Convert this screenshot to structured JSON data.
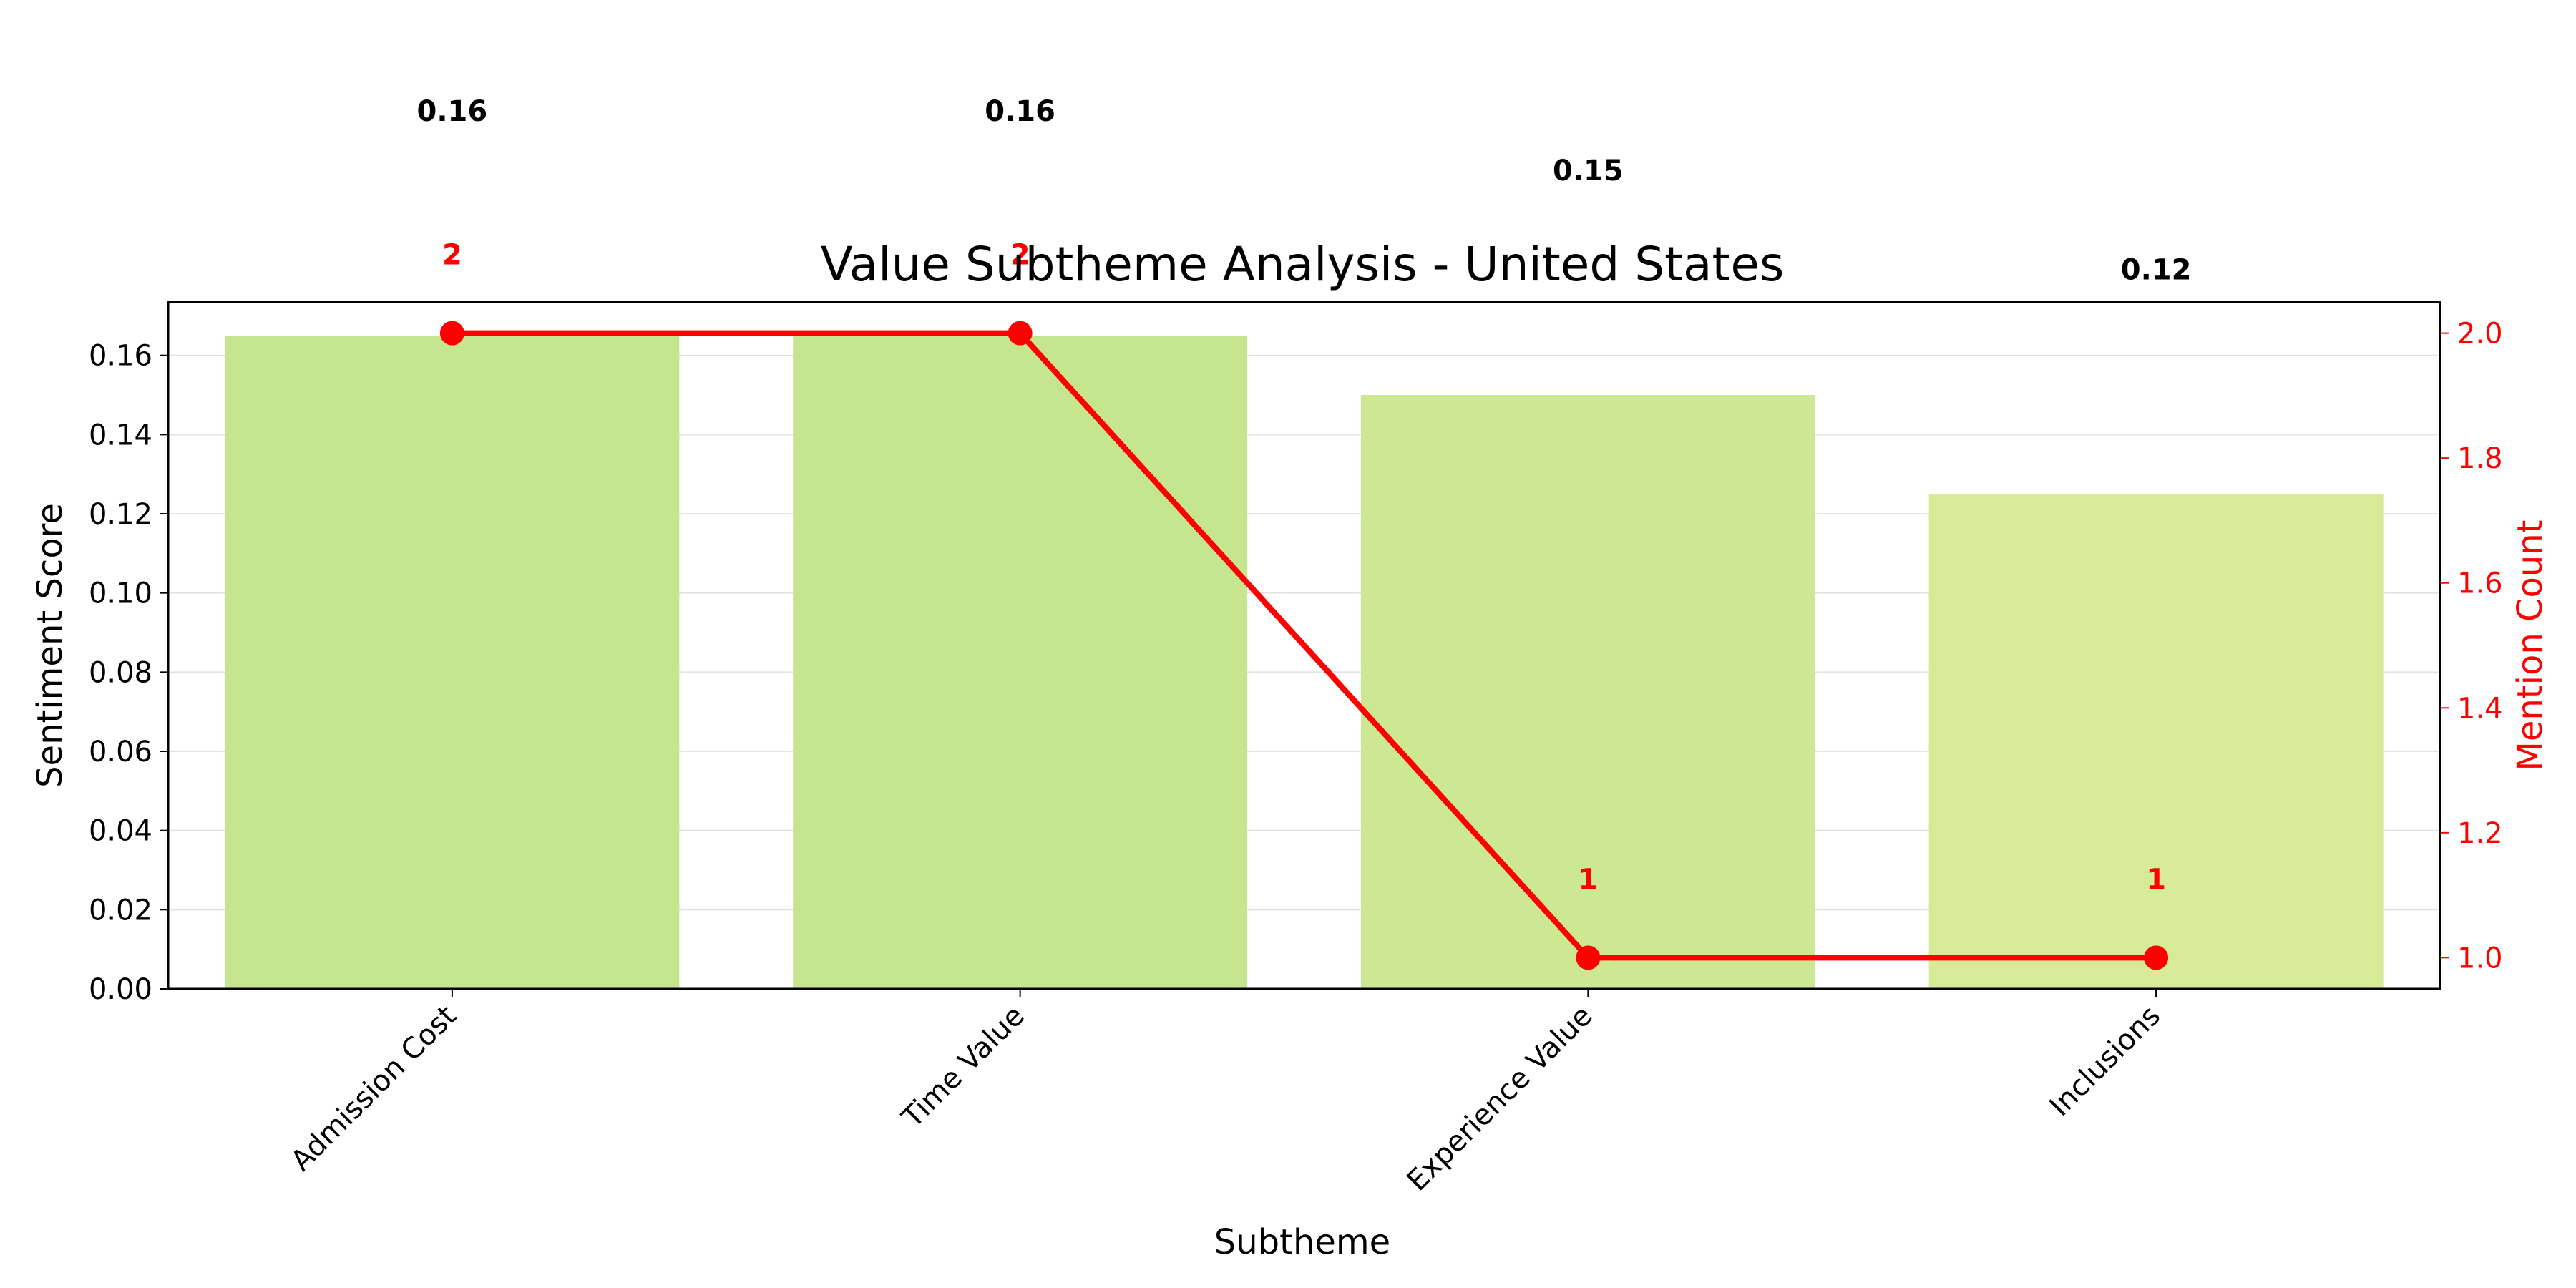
{
  "chart_data": {
    "type": "bar",
    "title": "Value Subtheme Analysis - United States",
    "xlabel": "Subtheme",
    "ylabel": "Sentiment Score",
    "y2label": "Mention Count",
    "categories": [
      "Admission Cost",
      "Time Value",
      "Experience Value",
      "Inclusions"
    ],
    "series": [
      {
        "type": "bar",
        "axis": "left",
        "values": [
          0.165,
          0.165,
          0.15,
          0.125
        ],
        "labels": [
          "0.16",
          "0.16",
          "0.15",
          "0.12"
        ],
        "colors": [
          "#c5e68f",
          "#c5e68f",
          "#cde892",
          "#d6ea98"
        ]
      },
      {
        "type": "line",
        "axis": "right",
        "values": [
          2,
          2,
          1,
          1
        ],
        "labels": [
          "2",
          "2",
          "1",
          "1"
        ],
        "color": "#ff0000"
      }
    ],
    "ylim": [
      0,
      0.1735
    ],
    "y2lim": [
      0.95,
      2.05
    ],
    "yticks": [
      "0.00",
      "0.02",
      "0.04",
      "0.06",
      "0.08",
      "0.10",
      "0.12",
      "0.14",
      "0.16"
    ],
    "y2ticks": [
      "1.0",
      "1.2",
      "1.4",
      "1.6",
      "1.8",
      "2.0"
    ],
    "grid": "horizontal",
    "legend": "none"
  }
}
